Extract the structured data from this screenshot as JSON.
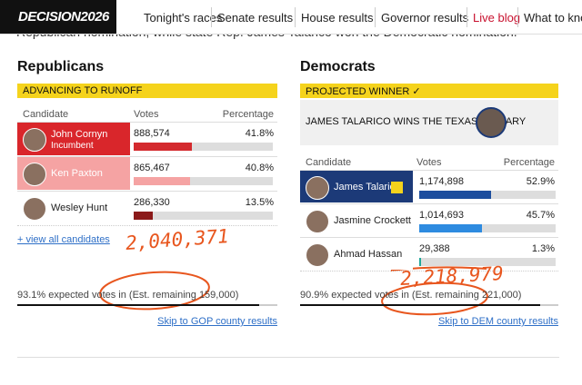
{
  "nav": {
    "brand": "DECISION2026",
    "items": [
      "Tonight's races",
      "Senate results",
      "House results",
      "Governor results",
      "Live blog",
      "What to know"
    ]
  },
  "intro": "Republican nomination, while state Rep. James Talarico won the Democratic nomination.",
  "panels": [
    {
      "title": "Republicans",
      "banner": "ADVANCING TO RUNOFF",
      "headers": [
        "Candidate",
        "Votes",
        "Percentage"
      ],
      "rows": [
        {
          "name": "John Cornyn",
          "note": "Incumbent",
          "votes": "888,574",
          "pct": {
            "value": 41.8,
            "label": "41.8%"
          }
        },
        {
          "name": "Ken Paxton",
          "votes": "865,467",
          "pct": {
            "value": 40.8,
            "label": "40.8%"
          }
        },
        {
          "name": "Wesley Hunt",
          "votes": "286,330",
          "pct": {
            "value": 13.5,
            "label": "13.5%"
          }
        }
      ],
      "view_all": "+ view all candidates",
      "expected": "93.1% expected votes in (Est. remaining 159,000)",
      "skip": "Skip to GOP county results",
      "annotation": "2,040,371"
    },
    {
      "title": "Democrats",
      "banner": "PROJECTED WINNER ✓",
      "winner": "JAMES TALARICO WINS THE TEXAS PRIMARY",
      "headers": [
        "Candidate",
        "Votes",
        "Percentage"
      ],
      "rows": [
        {
          "name": "James Talarico",
          "votes": "1,174,898",
          "pct": {
            "value": 52.9,
            "label": "52.9%"
          }
        },
        {
          "name": "Jasmine Crockett",
          "votes": "1,014,693",
          "pct": {
            "value": 45.7,
            "label": "45.7%"
          }
        },
        {
          "name": "Ahmad Hassan",
          "votes": "29,388",
          "pct": {
            "value": 1.3,
            "label": "1.3%"
          }
        }
      ],
      "expected": "90.9% expected votes in (Est. remaining 221,000)",
      "skip": "Skip to DEM county results",
      "annotation": "2,218,979"
    }
  ]
}
